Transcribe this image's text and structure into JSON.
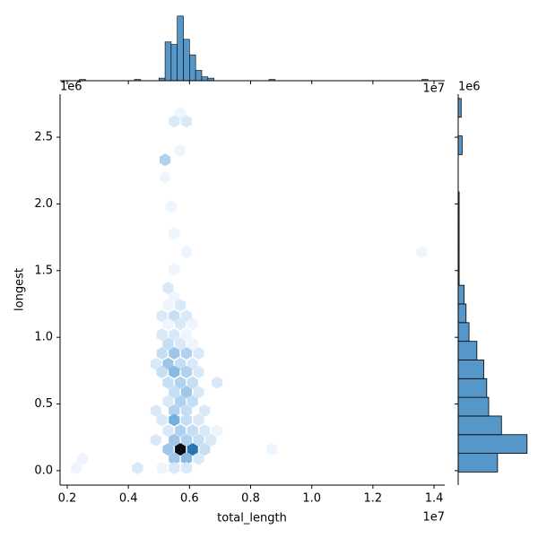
{
  "chart_data": [
    {
      "type": "hexbin",
      "xlabel": "total_length",
      "ylabel": "longest",
      "x_offset": "1e7",
      "y_offset": "1e6",
      "xlim": [
        0.1766,
        1.435
      ],
      "ylim": [
        -0.108,
        2.823
      ],
      "xticks": [
        0.2,
        0.4,
        0.6,
        0.8,
        {
          "value": 1,
          "label": "1.0"
        },
        1.2,
        1.4
      ],
      "yticks": [
        {
          "value": 0,
          "label": "0.0"
        },
        0.5,
        {
          "value": 1,
          "label": "1.0"
        },
        1.5,
        {
          "value": 2,
          "label": "2.0"
        },
        2.5
      ],
      "cmap": [
        "#eef5fc",
        "#2e86cf",
        "#0a0f14"
      ],
      "x": [
        0.57,
        0.55,
        0.59,
        0.57,
        0.52,
        0.52,
        0.54,
        0.55,
        0.59,
        0.55,
        1.36,
        0.53,
        0.55,
        0.53,
        0.57,
        0.51,
        0.55,
        0.59,
        0.53,
        0.57,
        0.61,
        0.51,
        0.55,
        0.59,
        0.53,
        0.57,
        0.61,
        0.51,
        0.55,
        0.59,
        0.63,
        0.49,
        0.53,
        0.57,
        0.61,
        0.51,
        0.55,
        0.59,
        0.63,
        0.53,
        0.57,
        0.61,
        0.69,
        0.55,
        0.59,
        0.63,
        0.53,
        0.57,
        0.61,
        0.49,
        0.55,
        0.59,
        0.65,
        0.51,
        0.55,
        0.59,
        0.63,
        0.53,
        0.57,
        0.61,
        0.65,
        0.69,
        0.49,
        0.55,
        0.59,
        0.63,
        0.67,
        0.53,
        0.57,
        0.61,
        0.65,
        0.87,
        0.55,
        0.59,
        0.63,
        0.51,
        0.55,
        0.59,
        0.43,
        0.25,
        0.23
      ],
      "y": [
        2.68,
        2.62,
        2.62,
        2.4,
        2.33,
        2.2,
        1.98,
        1.78,
        1.64,
        1.51,
        1.64,
        1.37,
        1.3,
        1.24,
        1.24,
        1.16,
        1.16,
        1.16,
        1.1,
        1.1,
        1.1,
        1.02,
        1.02,
        1.02,
        0.95,
        0.95,
        0.95,
        0.88,
        0.88,
        0.88,
        0.88,
        0.8,
        0.8,
        0.8,
        0.8,
        0.74,
        0.74,
        0.74,
        0.74,
        0.66,
        0.66,
        0.66,
        0.66,
        0.59,
        0.59,
        0.59,
        0.52,
        0.52,
        0.52,
        0.45,
        0.45,
        0.45,
        0.45,
        0.38,
        0.38,
        0.38,
        0.38,
        0.3,
        0.3,
        0.3,
        0.3,
        0.3,
        0.23,
        0.23,
        0.23,
        0.23,
        0.23,
        0.16,
        0.16,
        0.16,
        0.16,
        0.16,
        0.09,
        0.09,
        0.09,
        0.02,
        0.02,
        0.02,
        0.02,
        0.09,
        0.02
      ],
      "counts": [
        1,
        2,
        2,
        1,
        4,
        1,
        1,
        1,
        1,
        1,
        1,
        2,
        1,
        1,
        2,
        2,
        3,
        2,
        1,
        2,
        1,
        2,
        2,
        1,
        3,
        2,
        1,
        3,
        5,
        4,
        2,
        2,
        5,
        3,
        2,
        3,
        6,
        4,
        2,
        3,
        4,
        3,
        2,
        3,
        5,
        2,
        2,
        4,
        3,
        2,
        4,
        3,
        2,
        2,
        7,
        3,
        2,
        2,
        4,
        3,
        2,
        1,
        2,
        5,
        4,
        3,
        2,
        5,
        20,
        12,
        3,
        1,
        5,
        6,
        2,
        1,
        2,
        2,
        2,
        1,
        1
      ]
    },
    {
      "type": "histogram",
      "orientation": "vertical",
      "color": "#5497c8",
      "ylim": [
        0,
        52
      ],
      "bins": [
        0.22,
        0.24,
        0.26,
        0.28,
        0.3,
        0.32,
        0.34,
        0.36,
        0.38,
        0.4,
        0.42,
        0.44,
        0.46,
        0.48,
        0.5,
        0.52,
        0.54,
        0.56,
        0.58,
        0.6,
        0.62,
        0.64,
        0.66,
        0.68,
        0.7,
        0.72,
        0.74,
        0.76,
        0.78,
        0.8,
        0.82,
        0.84,
        0.86,
        0.88,
        0.9,
        0.92,
        0.94,
        0.96,
        0.98,
        1,
        1.02,
        1.04,
        1.06,
        1.08,
        1.1,
        1.12,
        1.14,
        1.16,
        1.18,
        1.2,
        1.22,
        1.24,
        1.26,
        1.28,
        1.3,
        1.32,
        1.34,
        1.36,
        1.38
      ],
      "counts": [
        0,
        1,
        0,
        0,
        0,
        0,
        0,
        0,
        0,
        0,
        1,
        0,
        0,
        0,
        2,
        30,
        28,
        50,
        32,
        20,
        8,
        3,
        2,
        0,
        0,
        0,
        0,
        0,
        0,
        0,
        0,
        0,
        1,
        0,
        0,
        0,
        0,
        0,
        0,
        0,
        0,
        0,
        0,
        0,
        0,
        0,
        0,
        0,
        0,
        0,
        0,
        0,
        0,
        0,
        0,
        0,
        0,
        1
      ]
    },
    {
      "type": "histogram",
      "orientation": "horizontal",
      "color": "#5497c8",
      "xlim": [
        0,
        72
      ],
      "bins": [
        -0.01,
        0.13,
        0.27,
        0.41,
        0.55,
        0.69,
        0.83,
        0.97,
        1.11,
        1.25,
        1.39,
        1.53,
        1.67,
        1.81,
        1.95,
        2.09,
        2.23,
        2.37,
        2.51,
        2.65,
        2.79
      ],
      "counts": [
        40,
        70,
        44,
        31,
        29,
        26,
        19,
        11,
        8,
        6,
        1,
        1,
        1,
        1,
        1,
        0,
        0,
        4,
        0,
        3
      ]
    }
  ]
}
